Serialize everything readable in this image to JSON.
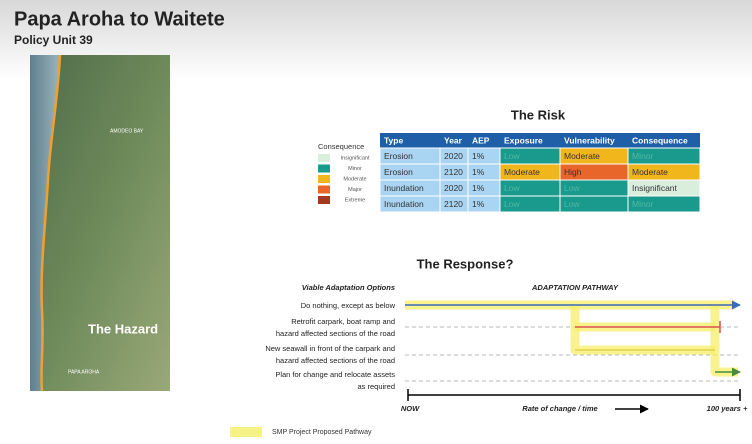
{
  "header": {
    "title": "Papa Aroha to Waitete",
    "subtitle": "Policy Unit 39"
  },
  "map": {
    "labels": [
      "AMODEO BAY",
      "PAPA AROHA"
    ],
    "caption": "The Hazard"
  },
  "risk": {
    "title": "The Risk",
    "legend": {
      "title": "Consequence",
      "items": [
        {
          "name": "Insignificant",
          "color": "#d9eedd"
        },
        {
          "name": "Minor",
          "color": "#1a9a8c"
        },
        {
          "name": "Moderate",
          "color": "#f2b61d"
        },
        {
          "name": "Major",
          "color": "#e8662a"
        },
        {
          "name": "Extreme",
          "color": "#a33a1f"
        }
      ]
    },
    "table": {
      "header": [
        "Type",
        "Year",
        "AEP",
        "Exposure",
        "Vulnerability",
        "Consequence"
      ],
      "rows": [
        [
          "Erosion",
          "2020",
          "1%",
          "Low",
          "Moderate",
          "Minor"
        ],
        [
          "Erosion",
          "2120",
          "1%",
          "Moderate",
          "High",
          "Moderate"
        ],
        [
          "Inundation",
          "2020",
          "1%",
          "Low",
          "Low",
          "Insignificant"
        ],
        [
          "Inundation",
          "2120",
          "1%",
          "Low",
          "Low",
          "Minor"
        ]
      ],
      "level_colors": {
        "Low": "#1a9a8c",
        "Moderate": "#f2b61d",
        "High": "#e8662a",
        "Minor": "#1a9a8c",
        "Insignificant": "#d9eedd"
      }
    }
  },
  "response": {
    "title": "The Response?",
    "options_heading": "Viable Adaptation Options",
    "pathway_heading": "ADAPTATION PATHWAY",
    "options": [
      [
        "Do nothing, except as below"
      ],
      [
        "Retrofit carpark, boat ramp and",
        "hazard affected sections of the road"
      ],
      [
        "New seawall in front of the carpark and",
        "hazard affected sections of the road"
      ],
      [
        "Plan for change and relocate assets",
        "as required"
      ]
    ],
    "axis": {
      "start": "NOW",
      "middle": "Rate of change / time",
      "end": "100 years +"
    },
    "legend": "SMP Project Proposed Pathway"
  }
}
